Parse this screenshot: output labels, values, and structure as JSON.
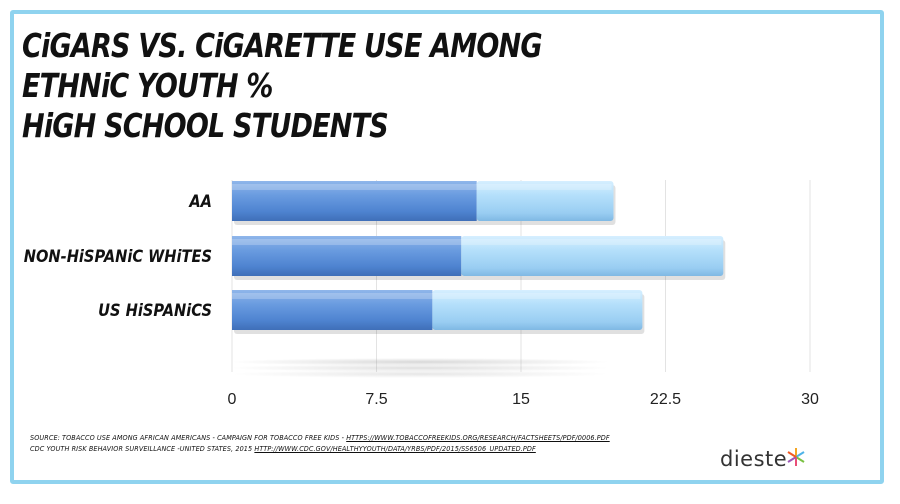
{
  "title": {
    "line1": "CiGARS VS. CiGARETTE  USE AMONG ETHNiC YOUTH  %",
    "line2": "HiGH SCHOOL STUDENTS"
  },
  "chart_data": {
    "type": "bar",
    "orientation": "horizontal",
    "stacked": true,
    "categories": [
      "AA",
      "NON-HiSPANiC WHiTES",
      "US HiSPANiCS"
    ],
    "series": [
      {
        "values": [
          12.7,
          11.9,
          10.4
        ],
        "color": "#5b8fd8"
      },
      {
        "values": [
          7.1,
          13.6,
          10.9
        ],
        "color": "#a6d4f7"
      }
    ],
    "xlim": [
      0,
      30
    ],
    "ticks": [
      "0",
      "7.5",
      "15",
      "22.5",
      "30"
    ],
    "grid": true,
    "legend": "none"
  },
  "source": {
    "line1_text": "SOURCE: TOBACCO USE AMONG AFRICAN AMERICANS - CAMPAIGN FOR TOBACCO FREE KIDS - ",
    "line1_url": "HTTPS://WWW.TOBACCOFREEKIDS.ORG/RESEARCH/FACTSHEETS/PDF/0006.PDF",
    "line2_text": "CDC YOUTH RISK BEHAVIOR SURVEILLANCE -UNITED STATES, 2015  ",
    "line2_url": "HTTP://WWW.CDC.GOV/HEALTHYYOUTH/DATA/YRBS/PDF/2015/SS6506_UPDATED.PDF"
  },
  "logo": {
    "text": "dieste",
    "icon": "asterisk-star-icon"
  },
  "colors": {
    "frame": "#8fd3ef",
    "dark_bar": "#5b8fd8",
    "light_bar": "#a6d4f7"
  }
}
